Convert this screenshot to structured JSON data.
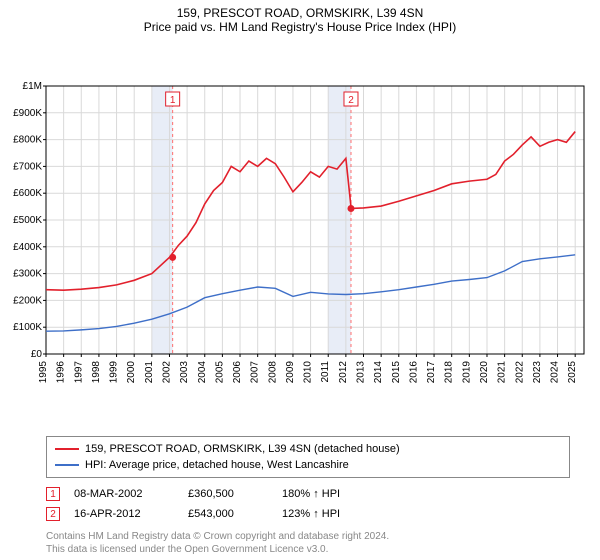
{
  "title_line1": "159, PRESCOT ROAD, ORMSKIRK, L39 4SN",
  "title_line2": "Price paid vs. HM Land Registry's House Price Index (HPI)",
  "chart": {
    "background_color": "#ffffff",
    "grid_color": "#d9d9d9",
    "shade_color": "#e8edf7",
    "marker_line_color": "#ff6e6e",
    "series": [
      {
        "name": "price_paid",
        "color": "#e2202c",
        "stroke_width": 1.6,
        "data": [
          [
            1995,
            240000
          ],
          [
            1996,
            238000
          ],
          [
            1997,
            242000
          ],
          [
            1998,
            248000
          ],
          [
            1999,
            258000
          ],
          [
            2000,
            275000
          ],
          [
            2001,
            300000
          ],
          [
            2002,
            360500
          ],
          [
            2002.5,
            405000
          ],
          [
            2003,
            440000
          ],
          [
            2003.5,
            490000
          ],
          [
            2004,
            560000
          ],
          [
            2004.5,
            610000
          ],
          [
            2005,
            640000
          ],
          [
            2005.5,
            700000
          ],
          [
            2006,
            680000
          ],
          [
            2006.5,
            720000
          ],
          [
            2007,
            700000
          ],
          [
            2007.5,
            730000
          ],
          [
            2008,
            710000
          ],
          [
            2008.5,
            660000
          ],
          [
            2009,
            605000
          ],
          [
            2009.5,
            640000
          ],
          [
            2010,
            680000
          ],
          [
            2010.5,
            660000
          ],
          [
            2011,
            700000
          ],
          [
            2011.5,
            690000
          ],
          [
            2012,
            730000
          ],
          [
            2012.3,
            543000
          ],
          [
            2013,
            545000
          ],
          [
            2014,
            552000
          ],
          [
            2015,
            570000
          ],
          [
            2016,
            590000
          ],
          [
            2017,
            610000
          ],
          [
            2018,
            635000
          ],
          [
            2019,
            645000
          ],
          [
            2020,
            652000
          ],
          [
            2020.5,
            670000
          ],
          [
            2021,
            720000
          ],
          [
            2021.5,
            745000
          ],
          [
            2022,
            780000
          ],
          [
            2022.5,
            810000
          ],
          [
            2023,
            775000
          ],
          [
            2023.5,
            790000
          ],
          [
            2024,
            800000
          ],
          [
            2024.5,
            790000
          ],
          [
            2025,
            830000
          ]
        ]
      },
      {
        "name": "hpi",
        "color": "#3e6fc8",
        "stroke_width": 1.4,
        "data": [
          [
            1995,
            85000
          ],
          [
            1996,
            86000
          ],
          [
            1997,
            90000
          ],
          [
            1998,
            95000
          ],
          [
            1999,
            103000
          ],
          [
            2000,
            115000
          ],
          [
            2001,
            130000
          ],
          [
            2002,
            150000
          ],
          [
            2003,
            175000
          ],
          [
            2004,
            210000
          ],
          [
            2005,
            225000
          ],
          [
            2006,
            238000
          ],
          [
            2007,
            250000
          ],
          [
            2008,
            245000
          ],
          [
            2009,
            215000
          ],
          [
            2010,
            230000
          ],
          [
            2011,
            224000
          ],
          [
            2012,
            222000
          ],
          [
            2013,
            225000
          ],
          [
            2014,
            232000
          ],
          [
            2015,
            240000
          ],
          [
            2016,
            250000
          ],
          [
            2017,
            260000
          ],
          [
            2018,
            272000
          ],
          [
            2019,
            278000
          ],
          [
            2020,
            285000
          ],
          [
            2021,
            310000
          ],
          [
            2022,
            345000
          ],
          [
            2023,
            355000
          ],
          [
            2024,
            362000
          ],
          [
            2025,
            370000
          ]
        ]
      }
    ],
    "sale_markers": [
      {
        "n": "1",
        "year": 2002.18,
        "price": 360500,
        "color": "#e2202c"
      },
      {
        "n": "2",
        "year": 2012.29,
        "price": 543000,
        "color": "#e2202c"
      }
    ],
    "xlim": [
      1995,
      2025.5
    ],
    "ylim": [
      0,
      1000000
    ],
    "yticks": [
      0,
      100000,
      200000,
      300000,
      400000,
      500000,
      600000,
      700000,
      800000,
      900000,
      1000000
    ],
    "ytick_labels": [
      "£0",
      "£100K",
      "£200K",
      "£300K",
      "£400K",
      "£500K",
      "£600K",
      "£700K",
      "£800K",
      "£900K",
      "£1M"
    ],
    "xticks": [
      1995,
      1996,
      1997,
      1998,
      1999,
      2000,
      2001,
      2002,
      2003,
      2004,
      2005,
      2006,
      2007,
      2008,
      2009,
      2010,
      2011,
      2012,
      2013,
      2014,
      2015,
      2016,
      2017,
      2018,
      2019,
      2020,
      2021,
      2022,
      2023,
      2024,
      2025
    ],
    "shaded_ranges": [
      [
        2001,
        2002.18
      ],
      [
        2011,
        2012.29
      ]
    ],
    "label_fontsize": 10
  },
  "legend": {
    "items": [
      {
        "color": "#e2202c",
        "label": "159, PRESCOT ROAD, ORMSKIRK, L39 4SN (detached house)"
      },
      {
        "color": "#3e6fc8",
        "label": "HPI: Average price, detached house, West Lancashire"
      }
    ]
  },
  "sales": [
    {
      "n": "1",
      "date": "08-MAR-2002",
      "price": "£360,500",
      "pct": "180% ↑ HPI",
      "color": "#e2202c"
    },
    {
      "n": "2",
      "date": "16-APR-2012",
      "price": "£543,000",
      "pct": "123% ↑ HPI",
      "color": "#e2202c"
    }
  ],
  "footer": {
    "line1": "Contains HM Land Registry data © Crown copyright and database right 2024.",
    "line2": "This data is licensed under the Open Government Licence v3.0."
  }
}
